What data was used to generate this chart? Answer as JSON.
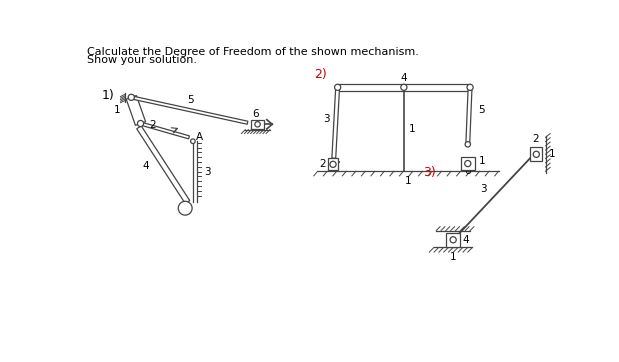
{
  "title_line1": "Calculate the Degree of Freedom of the shown mechanism.",
  "title_line2": "Show your solution.",
  "bg_color": "#ffffff",
  "text_color": "#000000",
  "red_color": "#cc0000",
  "mc": "#444444"
}
